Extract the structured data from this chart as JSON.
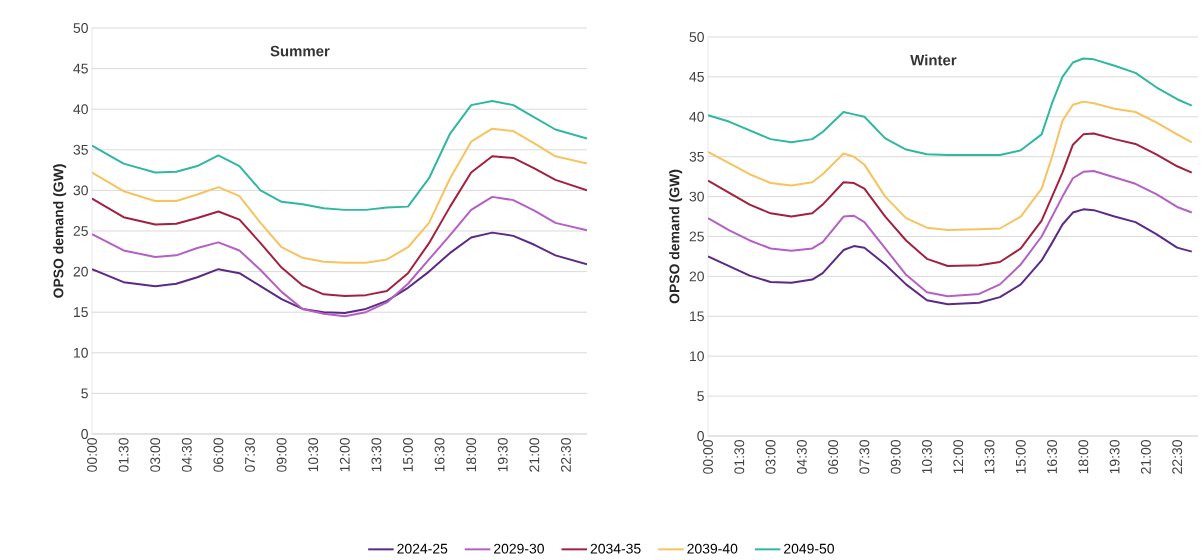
{
  "chart_data": [
    {
      "type": "line",
      "title": "Summer",
      "ylabel": "OPSO demand (GW)",
      "xlim": [
        0,
        23.5
      ],
      "ylim": [
        0,
        50
      ],
      "grid": "y",
      "legend": "bottom",
      "xticks": [
        {
          "value": 0,
          "label": "00:00"
        },
        {
          "value": 1.5,
          "label": "01:30"
        },
        {
          "value": 3,
          "label": "03:00"
        },
        {
          "value": 4.5,
          "label": "04:30"
        },
        {
          "value": 6,
          "label": "06:00"
        },
        {
          "value": 7.5,
          "label": "07:30"
        },
        {
          "value": 9,
          "label": "09:00"
        },
        {
          "value": 10.5,
          "label": "10:30"
        },
        {
          "value": 12,
          "label": "12:00"
        },
        {
          "value": 13.5,
          "label": "13:30"
        },
        {
          "value": 15,
          "label": "15:00"
        },
        {
          "value": 16.5,
          "label": "16:30"
        },
        {
          "value": 18,
          "label": "18:00"
        },
        {
          "value": 19.5,
          "label": "19:30"
        },
        {
          "value": 21,
          "label": "21:00"
        },
        {
          "value": 22.5,
          "label": "22:30"
        }
      ],
      "yticks": [
        0,
        5,
        10,
        15,
        20,
        25,
        30,
        35,
        40,
        45,
        50
      ],
      "x": [
        0,
        1.5,
        3,
        4,
        5,
        6,
        7,
        8,
        9,
        10,
        11,
        12,
        13,
        14,
        15,
        16,
        17,
        18,
        19,
        20,
        21,
        22,
        23.5
      ],
      "series": [
        {
          "name": "2024-25",
          "color": "#5b2a86",
          "values": [
            20.3,
            18.7,
            18.2,
            18.5,
            19.3,
            20.3,
            19.8,
            18.2,
            16.6,
            15.4,
            15,
            14.9,
            15.4,
            16.4,
            18,
            20,
            22.3,
            24.2,
            24.8,
            24.4,
            23.3,
            22,
            20.9
          ]
        },
        {
          "name": "2029-30",
          "color": "#b55fc6",
          "values": [
            24.6,
            22.6,
            21.8,
            22,
            22.9,
            23.6,
            22.6,
            20.2,
            17.5,
            15.4,
            14.8,
            14.5,
            15,
            16.2,
            18.5,
            21.5,
            24.5,
            27.6,
            29.2,
            28.8,
            27.5,
            26,
            25.1
          ]
        },
        {
          "name": "2034-35",
          "color": "#a3203f",
          "values": [
            29,
            26.7,
            25.8,
            25.9,
            26.6,
            27.4,
            26.4,
            23.5,
            20.5,
            18.3,
            17.2,
            17,
            17.1,
            17.6,
            19.8,
            23.5,
            28,
            32.2,
            34.2,
            34,
            32.7,
            31.3,
            30
          ]
        },
        {
          "name": "2039-40",
          "color": "#f7c35f",
          "values": [
            32.2,
            29.9,
            28.7,
            28.7,
            29.5,
            30.4,
            29.3,
            26,
            23,
            21.7,
            21.2,
            21.1,
            21.1,
            21.5,
            23,
            26,
            31.5,
            36,
            37.6,
            37.3,
            35.8,
            34.2,
            33.3
          ]
        },
        {
          "name": "2049-50",
          "color": "#2fb8a0",
          "values": [
            35.5,
            33.3,
            32.2,
            32.3,
            33,
            34.3,
            33,
            30,
            28.6,
            28.3,
            27.8,
            27.6,
            27.6,
            27.9,
            28,
            31.5,
            37,
            40.5,
            41,
            40.5,
            39,
            37.5,
            36.4
          ]
        }
      ]
    },
    {
      "type": "line",
      "title": "Winter",
      "ylabel": "OPSO demand (GW)",
      "xlim": [
        0,
        23.5
      ],
      "ylim": [
        0,
        50
      ],
      "grid": "y",
      "xticks": [
        {
          "value": 0,
          "label": "00:00"
        },
        {
          "value": 1.5,
          "label": "01:30"
        },
        {
          "value": 3,
          "label": "03:00"
        },
        {
          "value": 4.5,
          "label": "04:30"
        },
        {
          "value": 6,
          "label": "06:00"
        },
        {
          "value": 7.5,
          "label": "07:30"
        },
        {
          "value": 9,
          "label": "09:00"
        },
        {
          "value": 10.5,
          "label": "10:30"
        },
        {
          "value": 12,
          "label": "12:00"
        },
        {
          "value": 13.5,
          "label": "13:30"
        },
        {
          "value": 15,
          "label": "15:00"
        },
        {
          "value": 16.5,
          "label": "16:30"
        },
        {
          "value": 18,
          "label": "18:00"
        },
        {
          "value": 19.5,
          "label": "19:30"
        },
        {
          "value": 21,
          "label": "21:00"
        },
        {
          "value": 22.5,
          "label": "22:30"
        }
      ],
      "yticks": [
        0,
        5,
        10,
        15,
        20,
        25,
        30,
        35,
        40,
        45,
        50
      ],
      "x": [
        0,
        1,
        2,
        3,
        4,
        5,
        5.5,
        6.5,
        7,
        7.5,
        8.5,
        9.5,
        10.5,
        11.5,
        13,
        14,
        15,
        16,
        16.5,
        17,
        17.5,
        18,
        18.5,
        19.5,
        20.5,
        21.5,
        22.5,
        23.2
      ],
      "series": [
        {
          "color": "#5b2a86",
          "values": [
            22.5,
            21.3,
            20.1,
            19.3,
            19.2,
            19.6,
            20.4,
            23.3,
            23.8,
            23.6,
            21.5,
            19,
            17,
            16.5,
            16.7,
            17.4,
            19,
            22,
            24.2,
            26.5,
            28,
            28.4,
            28.3,
            27.5,
            26.8,
            25.3,
            23.6,
            23.1
          ]
        },
        {
          "color": "#b55fc6",
          "values": [
            27.3,
            25.8,
            24.5,
            23.5,
            23.2,
            23.5,
            24.3,
            27.5,
            27.6,
            26.8,
            23.5,
            20.2,
            18,
            17.5,
            17.8,
            19,
            21.5,
            25,
            27.5,
            30,
            32.3,
            33.1,
            33.2,
            32.4,
            31.6,
            30.3,
            28.7,
            28
          ]
        },
        {
          "color": "#a3203f",
          "values": [
            32,
            30.5,
            29,
            27.9,
            27.5,
            27.9,
            29,
            31.8,
            31.7,
            31,
            27.5,
            24.5,
            22.2,
            21.3,
            21.4,
            21.8,
            23.5,
            27,
            30,
            33,
            36.5,
            37.8,
            37.9,
            37.2,
            36.6,
            35.3,
            33.8,
            33
          ]
        },
        {
          "color": "#f7c35f",
          "values": [
            35.6,
            34.2,
            32.8,
            31.7,
            31.4,
            31.8,
            32.8,
            35.4,
            35,
            34,
            30,
            27.3,
            26.1,
            25.8,
            25.9,
            26,
            27.5,
            31,
            35,
            39.5,
            41.5,
            41.9,
            41.7,
            41,
            40.6,
            39.3,
            37.8,
            36.8
          ]
        },
        {
          "color": "#2fb8a0",
          "values": [
            40.2,
            39.4,
            38.3,
            37.2,
            36.8,
            37.2,
            38.1,
            40.6,
            40.3,
            40,
            37.3,
            35.9,
            35.3,
            35.2,
            35.2,
            35.2,
            35.8,
            37.8,
            41.7,
            45,
            46.8,
            47.3,
            47.2,
            46.4,
            45.5,
            43.7,
            42.2,
            41.4
          ]
        }
      ]
    }
  ]
}
